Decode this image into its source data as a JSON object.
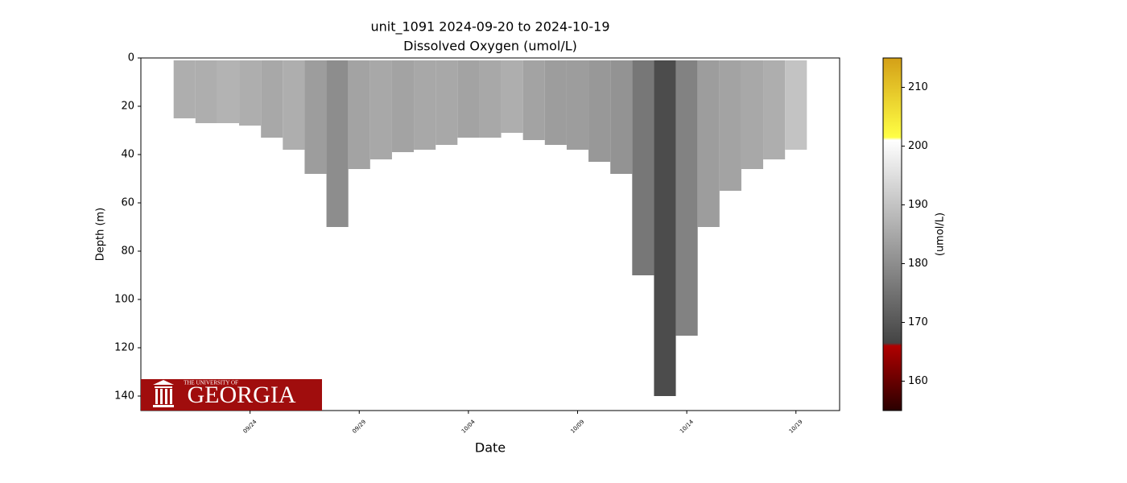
{
  "chart_data": {
    "type": "profile",
    "title": "unit_1091 2024-09-20 to 2024-10-19",
    "subtitle": "Dissolved Oxygen (umol/L)",
    "xlabel": "Date",
    "ylabel": "Depth (m)",
    "colorbar_label": "(umol/L)",
    "x": [
      "09/21",
      "09/22",
      "09/23",
      "09/24",
      "09/25",
      "09/26",
      "09/27",
      "09/28",
      "09/29",
      "09/30",
      "10/01",
      "10/02",
      "10/03",
      "10/04",
      "10/05",
      "10/06",
      "10/07",
      "10/08",
      "10/09",
      "10/10",
      "10/11",
      "10/12",
      "10/13",
      "10/14",
      "10/15",
      "10/16",
      "10/17",
      "10/18",
      "10/19"
    ],
    "depth_max": [
      25,
      27,
      27,
      28,
      33,
      38,
      48,
      70,
      46,
      42,
      39,
      38,
      36,
      33,
      33,
      31,
      34,
      36,
      38,
      43,
      48,
      90,
      140,
      115,
      70,
      55,
      46,
      42,
      38
    ],
    "oxygen": [
      186,
      186,
      187,
      186,
      185,
      186,
      183,
      180,
      184,
      185,
      184,
      185,
      185,
      184,
      185,
      186,
      184,
      183,
      183,
      182,
      181,
      176,
      168,
      178,
      183,
      184,
      185,
      186,
      190
    ],
    "xlim": [
      "09/19",
      "10/21"
    ],
    "xticks": [
      "09/24",
      "09/29",
      "10/04",
      "10/09",
      "10/14",
      "10/19"
    ],
    "ylim": [
      0,
      146
    ],
    "y_inverted": true,
    "yticks": [
      0,
      20,
      40,
      60,
      80,
      100,
      120,
      140
    ],
    "clim": [
      155,
      215
    ],
    "cticks": [
      160,
      170,
      180,
      190,
      200,
      210
    ],
    "colormap": [
      {
        "value": 155,
        "color": "#2a0000"
      },
      {
        "value": 166,
        "color": "#b00000"
      },
      {
        "value": 166.5,
        "color": "#444444"
      },
      {
        "value": 201,
        "color": "#ffffff"
      },
      {
        "value": 201.5,
        "color": "#ffff44"
      },
      {
        "value": 215,
        "color": "#d4a017"
      }
    ]
  },
  "logo": {
    "small": "THE UNIVERSITY OF",
    "large": "GEORGIA"
  }
}
